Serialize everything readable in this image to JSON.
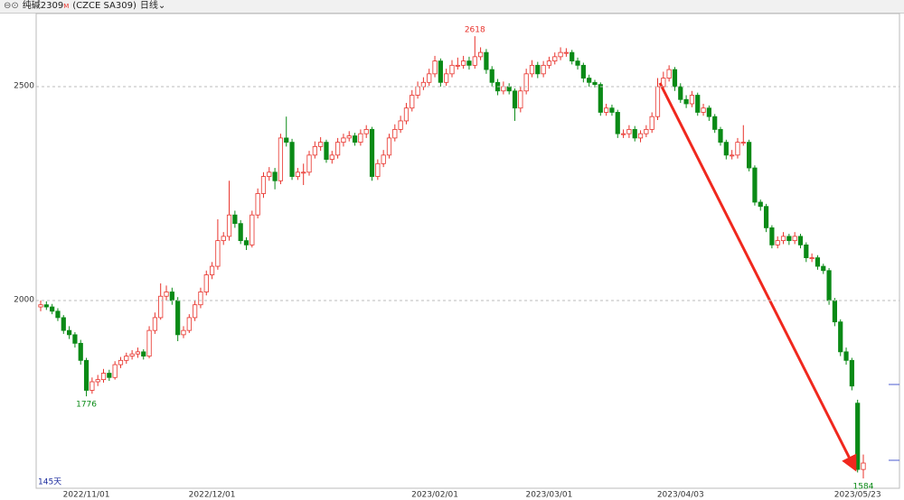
{
  "header": {
    "name": "纯碱2309",
    "flag": "M",
    "code": "(CZCE SA309)",
    "period": "日线"
  },
  "chart_data": {
    "type": "candlestick",
    "period_label": "145天",
    "up_color": "#e8312a",
    "down_color": "#0a8a16",
    "ylim": [
      1561,
      2671
    ],
    "yticks": [
      2000,
      2500
    ],
    "grid": true,
    "annotations": [
      2618,
      1776,
      1584
    ],
    "categories": [
      null,
      null,
      null,
      null,
      null,
      null,
      null,
      null,
      "2022/11/01",
      null,
      null,
      null,
      null,
      null,
      null,
      null,
      null,
      null,
      null,
      null,
      null,
      null,
      null,
      null,
      null,
      null,
      null,
      null,
      null,
      null,
      "2022/12/01",
      null,
      null,
      null,
      null,
      null,
      null,
      null,
      null,
      null,
      null,
      null,
      null,
      null,
      null,
      null,
      null,
      null,
      null,
      null,
      null,
      null,
      null,
      null,
      null,
      null,
      null,
      null,
      null,
      null,
      null,
      null,
      null,
      null,
      null,
      null,
      null,
      null,
      null,
      "2023/02/01",
      null,
      null,
      null,
      null,
      null,
      null,
      null,
      null,
      null,
      null,
      null,
      null,
      null,
      null,
      null,
      null,
      null,
      null,
      null,
      "2023/03/01",
      null,
      null,
      null,
      null,
      null,
      null,
      null,
      null,
      null,
      null,
      null,
      null,
      null,
      null,
      null,
      null,
      null,
      null,
      null,
      null,
      null,
      null,
      "2023/04/03",
      null,
      null,
      null,
      null,
      null,
      null,
      null,
      null,
      null,
      null,
      null,
      null,
      null,
      null,
      null,
      null,
      null,
      null,
      null,
      null,
      null,
      null,
      null,
      null,
      null,
      null,
      null,
      null,
      null,
      null,
      "2023/05/23"
    ],
    "ohlc": [
      [
        1985,
        2000,
        1975,
        1990
      ],
      [
        1990,
        1998,
        1978,
        1985
      ],
      [
        1985,
        1992,
        1968,
        1975
      ],
      [
        1975,
        1982,
        1952,
        1960
      ],
      [
        1960,
        1966,
        1922,
        1930
      ],
      [
        1930,
        1940,
        1910,
        1920
      ],
      [
        1920,
        1926,
        1890,
        1900
      ],
      [
        1900,
        1908,
        1850,
        1860
      ],
      [
        1860,
        1866,
        1776,
        1790
      ],
      [
        1790,
        1820,
        1782,
        1810
      ],
      [
        1810,
        1826,
        1800,
        1815
      ],
      [
        1815,
        1840,
        1808,
        1830
      ],
      [
        1830,
        1838,
        1812,
        1820
      ],
      [
        1820,
        1858,
        1815,
        1850
      ],
      [
        1850,
        1868,
        1842,
        1860
      ],
      [
        1860,
        1878,
        1852,
        1870
      ],
      [
        1870,
        1884,
        1862,
        1875
      ],
      [
        1875,
        1890,
        1866,
        1880
      ],
      [
        1880,
        1886,
        1862,
        1870
      ],
      [
        1870,
        1940,
        1865,
        1930
      ],
      [
        1930,
        1972,
        1922,
        1960
      ],
      [
        1960,
        2040,
        1955,
        2010
      ],
      [
        2010,
        2035,
        2000,
        2020
      ],
      [
        2020,
        2030,
        1990,
        2000
      ],
      [
        2000,
        2008,
        1905,
        1920
      ],
      [
        1920,
        1940,
        1912,
        1930
      ],
      [
        1930,
        1968,
        1924,
        1960
      ],
      [
        1960,
        2000,
        1952,
        1990
      ],
      [
        1990,
        2030,
        1982,
        2020
      ],
      [
        2020,
        2070,
        2012,
        2060
      ],
      [
        2060,
        2090,
        2050,
        2080
      ],
      [
        2080,
        2190,
        2072,
        2140
      ],
      [
        2140,
        2160,
        2130,
        2150
      ],
      [
        2150,
        2280,
        2140,
        2200
      ],
      [
        2200,
        2210,
        2170,
        2180
      ],
      [
        2180,
        2188,
        2132,
        2140
      ],
      [
        2140,
        2148,
        2118,
        2130
      ],
      [
        2130,
        2210,
        2124,
        2200
      ],
      [
        2200,
        2262,
        2192,
        2250
      ],
      [
        2250,
        2300,
        2240,
        2290
      ],
      [
        2290,
        2312,
        2280,
        2300
      ],
      [
        2300,
        2310,
        2260,
        2280
      ],
      [
        2280,
        2390,
        2272,
        2380
      ],
      [
        2380,
        2430,
        2360,
        2370
      ],
      [
        2370,
        2378,
        2282,
        2290
      ],
      [
        2290,
        2310,
        2282,
        2300
      ],
      [
        2300,
        2320,
        2270,
        2300
      ],
      [
        2300,
        2350,
        2292,
        2340
      ],
      [
        2340,
        2372,
        2332,
        2360
      ],
      [
        2360,
        2382,
        2350,
        2370
      ],
      [
        2370,
        2376,
        2322,
        2330
      ],
      [
        2330,
        2350,
        2320,
        2340
      ],
      [
        2340,
        2380,
        2332,
        2370
      ],
      [
        2370,
        2390,
        2360,
        2380
      ],
      [
        2380,
        2396,
        2372,
        2385
      ],
      [
        2385,
        2392,
        2362,
        2370
      ],
      [
        2370,
        2400,
        2362,
        2390
      ],
      [
        2390,
        2410,
        2380,
        2400
      ],
      [
        2400,
        2406,
        2280,
        2290
      ],
      [
        2290,
        2330,
        2282,
        2320
      ],
      [
        2320,
        2352,
        2312,
        2340
      ],
      [
        2340,
        2390,
        2332,
        2380
      ],
      [
        2380,
        2412,
        2372,
        2400
      ],
      [
        2400,
        2432,
        2392,
        2420
      ],
      [
        2420,
        2462,
        2412,
        2450
      ],
      [
        2450,
        2492,
        2442,
        2480
      ],
      [
        2480,
        2512,
        2472,
        2500
      ],
      [
        2500,
        2522,
        2492,
        2510
      ],
      [
        2510,
        2542,
        2502,
        2530
      ],
      [
        2530,
        2572,
        2522,
        2560
      ],
      [
        2560,
        2566,
        2500,
        2510
      ],
      [
        2510,
        2542,
        2502,
        2530
      ],
      [
        2530,
        2562,
        2522,
        2550
      ],
      [
        2550,
        2568,
        2540,
        2550
      ],
      [
        2550,
        2572,
        2542,
        2560
      ],
      [
        2560,
        2570,
        2540,
        2550
      ],
      [
        2550,
        2618,
        2542,
        2570
      ],
      [
        2570,
        2592,
        2562,
        2580
      ],
      [
        2580,
        2588,
        2530,
        2540
      ],
      [
        2540,
        2548,
        2500,
        2510
      ],
      [
        2510,
        2518,
        2480,
        2490
      ],
      [
        2490,
        2512,
        2482,
        2500
      ],
      [
        2500,
        2508,
        2482,
        2490
      ],
      [
        2490,
        2496,
        2420,
        2450
      ],
      [
        2450,
        2500,
        2440,
        2490
      ],
      [
        2490,
        2542,
        2482,
        2530
      ],
      [
        2530,
        2562,
        2522,
        2550
      ],
      [
        2550,
        2558,
        2520,
        2530
      ],
      [
        2530,
        2560,
        2522,
        2550
      ],
      [
        2550,
        2570,
        2542,
        2560
      ],
      [
        2560,
        2580,
        2552,
        2570
      ],
      [
        2570,
        2592,
        2562,
        2580
      ],
      [
        2580,
        2590,
        2570,
        2580
      ],
      [
        2580,
        2586,
        2552,
        2560
      ],
      [
        2560,
        2568,
        2540,
        2550
      ],
      [
        2550,
        2556,
        2510,
        2520
      ],
      [
        2520,
        2528,
        2500,
        2510
      ],
      [
        2510,
        2516,
        2498,
        2505
      ],
      [
        2505,
        2510,
        2432,
        2440
      ],
      [
        2440,
        2460,
        2432,
        2450
      ],
      [
        2450,
        2458,
        2432,
        2440
      ],
      [
        2440,
        2446,
        2380,
        2390
      ],
      [
        2390,
        2400,
        2380,
        2390
      ],
      [
        2390,
        2410,
        2380,
        2400
      ],
      [
        2400,
        2408,
        2372,
        2380
      ],
      [
        2380,
        2398,
        2370,
        2390
      ],
      [
        2390,
        2410,
        2382,
        2400
      ],
      [
        2400,
        2440,
        2392,
        2430
      ],
      [
        2430,
        2520,
        2422,
        2500
      ],
      [
        2500,
        2535,
        2490,
        2520
      ],
      [
        2520,
        2550,
        2512,
        2540
      ],
      [
        2540,
        2546,
        2490,
        2500
      ],
      [
        2500,
        2508,
        2462,
        2470
      ],
      [
        2470,
        2480,
        2450,
        2460
      ],
      [
        2460,
        2490,
        2452,
        2480
      ],
      [
        2480,
        2486,
        2432,
        2440
      ],
      [
        2440,
        2460,
        2432,
        2450
      ],
      [
        2450,
        2456,
        2420,
        2430
      ],
      [
        2430,
        2436,
        2392,
        2400
      ],
      [
        2400,
        2406,
        2362,
        2370
      ],
      [
        2370,
        2376,
        2330,
        2340
      ],
      [
        2340,
        2352,
        2330,
        2340
      ],
      [
        2340,
        2380,
        2332,
        2370
      ],
      [
        2370,
        2410,
        2362,
        2370
      ],
      [
        2370,
        2376,
        2302,
        2310
      ],
      [
        2310,
        2316,
        2222,
        2230
      ],
      [
        2230,
        2236,
        2210,
        2220
      ],
      [
        2220,
        2226,
        2160,
        2170
      ],
      [
        2170,
        2176,
        2122,
        2130
      ],
      [
        2130,
        2150,
        2122,
        2140
      ],
      [
        2140,
        2160,
        2132,
        2150
      ],
      [
        2150,
        2156,
        2130,
        2140
      ],
      [
        2140,
        2160,
        2132,
        2150
      ],
      [
        2150,
        2156,
        2122,
        2130
      ],
      [
        2130,
        2136,
        2090,
        2100
      ],
      [
        2100,
        2110,
        2090,
        2100
      ],
      [
        2100,
        2106,
        2072,
        2080
      ],
      [
        2080,
        2086,
        2062,
        2070
      ],
      [
        2070,
        2076,
        1990,
        2000
      ],
      [
        2000,
        2006,
        1940,
        1950
      ],
      [
        1950,
        1956,
        1870,
        1880
      ],
      [
        1880,
        1890,
        1850,
        1860
      ],
      [
        1860,
        1866,
        1790,
        1800
      ],
      [
        1760,
        1768,
        1598,
        1605
      ],
      [
        1605,
        1640,
        1584,
        1620
      ]
    ]
  }
}
